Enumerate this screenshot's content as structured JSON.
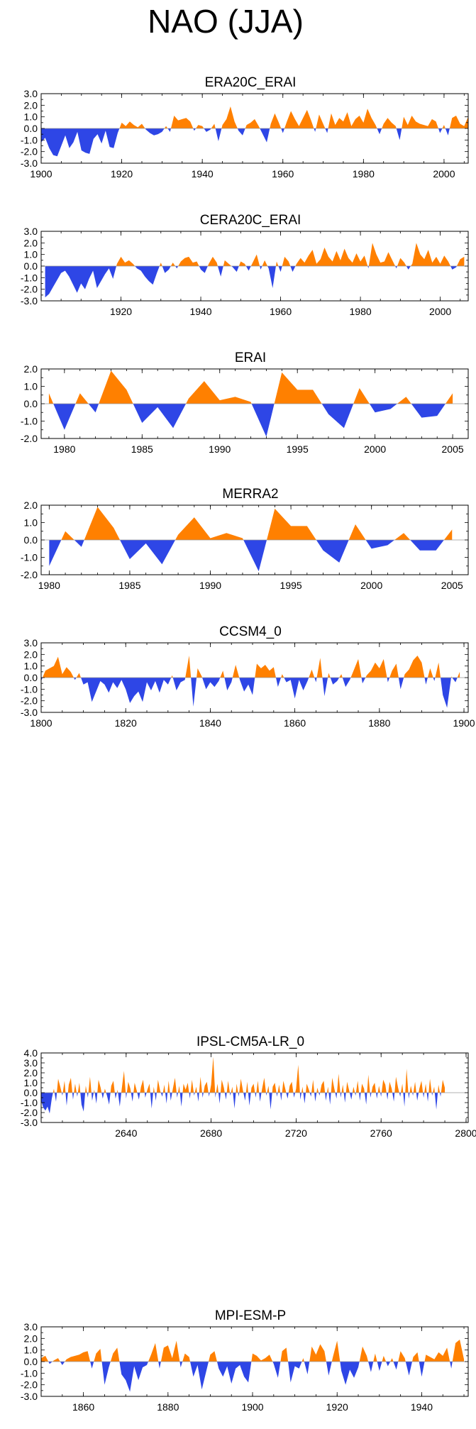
{
  "figure_title": "NAO (JJA)",
  "colors": {
    "positive": "#ff8000",
    "negative": "#2e46e6",
    "zero_line": "#999999"
  },
  "chart_data": [
    {
      "type": "area",
      "title": "ERA20C_ERAI",
      "xlim": [
        1900,
        2006
      ],
      "ylim": [
        -3,
        3
      ],
      "yticks": [
        3.0,
        2.0,
        1.0,
        0.0,
        -1.0,
        -2.0,
        -3.0
      ],
      "xticks": [
        1900,
        1920,
        1940,
        1960,
        1980,
        2000
      ],
      "x_start": 1900,
      "values": [
        -1.2,
        -0.8,
        -1.7,
        -2.3,
        -2.4,
        -1.5,
        -0.6,
        -1.7,
        -1.2,
        -0.3,
        -1.9,
        -2.1,
        -2.2,
        -0.9,
        -0.5,
        -1.3,
        -0.2,
        -1.6,
        -1.7,
        -0.4,
        0.5,
        0.2,
        0.6,
        0.3,
        0.1,
        0.4,
        -0.1,
        -0.4,
        -0.6,
        -0.5,
        -0.3,
        0.2,
        -0.3,
        1.1,
        0.7,
        0.8,
        0.9,
        0.6,
        -0.2,
        0.3,
        0.2,
        -0.3,
        -0.1,
        0.4,
        -1.1,
        0.3,
        0.8,
        1.9,
        0.6,
        -0.2,
        -0.6,
        0.3,
        0.5,
        0.8,
        0.2,
        -0.5,
        -1.2,
        0.4,
        1.3,
        0.5,
        -0.4,
        0.6,
        1.5,
        0.8,
        0.2,
        0.9,
        1.6,
        0.7,
        -0.3,
        1.2,
        0.4,
        -0.4,
        1.3,
        0.3,
        0.9,
        0.6,
        1.4,
        0.2,
        0.8,
        1.1,
        0.5,
        1.7,
        0.9,
        0.3,
        -0.5,
        0.4,
        0.9,
        0.5,
        0.2,
        -1.0,
        1.0,
        0.3,
        1.1,
        0.6,
        0.4,
        0.3,
        0.2,
        0.8,
        0.6,
        -0.4,
        0.3,
        -0.6,
        0.9,
        1.1,
        0.4,
        0.2,
        1.0
      ]
    },
    {
      "type": "area",
      "title": "CERA20C_ERAI",
      "xlim": [
        1900,
        2007
      ],
      "ylim": [
        -3,
        3
      ],
      "yticks": [
        3.0,
        2.0,
        1.0,
        0.0,
        -1.0,
        -2.0,
        -3.0
      ],
      "xticks": [
        1920,
        1940,
        1960,
        1980,
        2000
      ],
      "x_start": 1901,
      "values": [
        -2.7,
        -2.4,
        -1.8,
        -1.2,
        -0.6,
        -0.4,
        -0.9,
        -1.6,
        -2.3,
        -1.5,
        -2.0,
        -1.1,
        -0.4,
        -1.9,
        -1.3,
        -0.7,
        -0.2,
        -1.1,
        0.2,
        0.8,
        0.3,
        0.5,
        0.2,
        -0.2,
        -0.4,
        -0.9,
        -1.3,
        -1.6,
        -0.6,
        0.3,
        -0.6,
        -0.3,
        0.3,
        -0.2,
        0.4,
        0.7,
        0.8,
        0.3,
        0.4,
        -0.3,
        -0.6,
        0.2,
        0.8,
        0.3,
        -0.9,
        0.5,
        0.2,
        -0.1,
        -0.5,
        0.4,
        0.2,
        -0.4,
        0.3,
        1.0,
        -0.3,
        0.5,
        -0.2,
        -1.9,
        0.4,
        -0.5,
        0.8,
        0.4,
        -0.5,
        0.2,
        0.7,
        0.3,
        0.9,
        1.4,
        0.2,
        0.6,
        1.6,
        0.8,
        0.4,
        1.3,
        0.5,
        1.5,
        0.7,
        0.3,
        1.1,
        0.4,
        0.9,
        -0.2,
        2.0,
        1.0,
        0.3,
        0.4,
        1.2,
        0.5,
        -0.2,
        0.7,
        0.3,
        -0.3,
        0.2,
        2.0,
        1.0,
        0.6,
        1.4,
        0.3,
        0.8,
        0.2,
        0.9,
        0.4,
        -0.3,
        -0.1,
        0.6,
        0.8
      ]
    },
    {
      "type": "area",
      "title": "ERAI",
      "xlim": [
        1978.5,
        2006
      ],
      "ylim": [
        -2,
        2
      ],
      "yticks": [
        2.0,
        1.0,
        0.0,
        -1.0,
        -2.0
      ],
      "xticks": [
        1980,
        1985,
        1990,
        1995,
        2000,
        2005
      ],
      "x_start": 1979,
      "values": [
        0.6,
        -1.5,
        0.6,
        -0.5,
        1.9,
        0.8,
        -1.1,
        -0.2,
        -1.4,
        0.3,
        1.3,
        0.2,
        0.4,
        0.1,
        -1.9,
        1.8,
        0.8,
        0.8,
        -0.6,
        -1.4,
        0.9,
        -0.5,
        -0.3,
        0.4,
        -0.8,
        -0.7,
        0.6
      ]
    },
    {
      "type": "area",
      "title": "MERRA2",
      "xlim": [
        1979.5,
        2006
      ],
      "ylim": [
        -2,
        2
      ],
      "yticks": [
        2.0,
        1.0,
        0.0,
        -1.0,
        -2.0
      ],
      "xticks": [
        1980,
        1985,
        1990,
        1995,
        2000,
        2005
      ],
      "x_start": 1980,
      "values": [
        -1.5,
        0.5,
        -0.4,
        1.9,
        0.7,
        -1.1,
        -0.2,
        -1.4,
        0.3,
        1.3,
        0.1,
        0.4,
        0.1,
        -1.8,
        1.8,
        0.8,
        0.8,
        -0.6,
        -1.3,
        0.9,
        -0.5,
        -0.3,
        0.4,
        -0.6,
        -0.6,
        0.6
      ]
    },
    {
      "type": "area",
      "title": "CCSM4_0",
      "xlim": [
        1800,
        1901
      ],
      "ylim": [
        -3,
        3
      ],
      "yticks": [
        3.0,
        2.0,
        1.0,
        0.0,
        -1.0,
        -2.0,
        -3.0
      ],
      "xticks": [
        1800,
        1820,
        1840,
        1860,
        1880,
        1900
      ],
      "x_start": 1800,
      "values": [
        -0.3,
        0.6,
        0.8,
        1.0,
        1.8,
        0.3,
        0.9,
        0.5,
        -0.2,
        0.4,
        -0.6,
        -0.4,
        -2.1,
        -1.2,
        -0.3,
        -0.6,
        -1.3,
        -0.4,
        -0.9,
        -0.2,
        -1.0,
        -2.2,
        -1.6,
        -1.2,
        -2.1,
        -0.4,
        -1.1,
        -0.3,
        -1.3,
        -0.2,
        -0.6,
        0.2,
        -1.1,
        -0.4,
        -0.2,
        1.9,
        -2.5,
        0.8,
        0.1,
        -1.0,
        -0.4,
        -0.8,
        -0.3,
        0.6,
        -1.1,
        -0.4,
        1.1,
        -0.2,
        -1.2,
        -0.6,
        -1.5,
        1.2,
        0.8,
        1.1,
        0.6,
        0.9,
        -0.8,
        0.3,
        -0.4,
        -0.2,
        -1.8,
        -0.2,
        -1.1,
        -0.3,
        0.7,
        -0.4,
        1.7,
        -1.6,
        0.4,
        -0.6,
        -0.3,
        0.3,
        -0.8,
        -0.2,
        0.7,
        1.6,
        -0.5,
        0.2,
        0.6,
        1.3,
        0.8,
        1.6,
        -0.4,
        0.6,
        1.2,
        -1.0,
        0.3,
        0.7,
        1.5,
        1.9,
        1.3,
        -0.6,
        0.8,
        -0.3,
        1.3,
        -1.5,
        -2.6,
        0.1,
        -0.4,
        0.5
      ]
    },
    {
      "type": "area",
      "title": "IPSL-CM5A-LR_0",
      "xlim": [
        2600,
        2801
      ],
      "ylim": [
        -3,
        4
      ],
      "yticks": [
        4.0,
        3.0,
        2.0,
        1.0,
        0.0,
        -1.0,
        -2.0,
        -3.0
      ],
      "xticks": [
        2640,
        2680,
        2720,
        2760,
        2800
      ],
      "x_start": 2600,
      "values": [
        -0.8,
        -1.5,
        -1.8,
        -1.4,
        -2.1,
        -0.6,
        0.4,
        -0.9,
        1.4,
        0.6,
        -0.3,
        1.2,
        -1.3,
        0.8,
        1.5,
        -0.7,
        0.9,
        -0.4,
        1.0,
        -1.2,
        -1.9,
        0.7,
        -0.5,
        1.6,
        -0.8,
        0.3,
        -1.1,
        1.3,
        0.5,
        -0.6,
        0.4,
        -0.3,
        -1.2,
        0.7,
        1.2,
        -0.6,
        0.3,
        -1.4,
        0.5,
        2.2,
        -0.6,
        1.1,
        0.4,
        -0.9,
        1.0,
        0.2,
        -0.7,
        0.6,
        1.3,
        -0.5,
        0.3,
        0.9,
        -1.6,
        0.6,
        -0.8,
        1.3,
        0.2,
        -0.4,
        0.8,
        -1.1,
        1.2,
        -0.8,
        0.4,
        1.5,
        -0.5,
        0.7,
        -1.4,
        0.9,
        0.3,
        1.0,
        -0.6,
        1.3,
        -0.3,
        0.6,
        -0.9,
        1.6,
        -0.5,
        0.7,
        1.1,
        -0.4,
        0.8,
        3.6,
        -0.5,
        0.9,
        -1.1,
        1.3,
        0.5,
        -0.7,
        1.2,
        -0.3,
        0.6,
        -1.6,
        0.9,
        -0.4,
        1.4,
        0.2,
        -0.8,
        1.1,
        -1.3,
        0.5,
        0.9,
        -0.5,
        1.2,
        -0.9,
        0.4,
        1.5,
        -0.3,
        0.7,
        -1.7,
        0.6,
        1.0,
        -0.4,
        0.8,
        -0.8,
        1.2,
        0.3,
        -0.6,
        0.7,
        1.1,
        -0.5,
        0.4,
        2.8,
        -0.7,
        0.6,
        -1.1,
        0.9,
        0.3,
        -0.4,
        1.3,
        -0.9,
        0.5,
        -0.3,
        0.8,
        1.2,
        -0.8,
        0.6,
        -1.2,
        1.5,
        0.4,
        -0.6,
        1.9,
        -0.5,
        0.8,
        -1.0,
        1.1,
        0.2,
        -0.7,
        0.6,
        -0.3,
        1.2,
        -0.8,
        0.9,
        0.4,
        -1.2,
        1.8,
        -0.5,
        0.6,
        1.0,
        -0.6,
        0.7,
        -0.4,
        1.3,
        0.8,
        -0.7,
        1.1,
        0.4,
        -0.9,
        1.6,
        0.5,
        -0.4,
        0.9,
        -1.4,
        2.4,
        -0.6,
        0.7,
        -0.3,
        1.1,
        -0.8,
        0.4,
        1.2,
        -0.5,
        0.9,
        -0.9,
        1.4,
        -0.3,
        0.6,
        -1.7,
        0.8,
        -0.4,
        1.3,
        0.5
      ]
    },
    {
      "type": "area",
      "title": "MPI-ESM-P",
      "xlim": [
        1850,
        1951
      ],
      "ylim": [
        -3,
        3
      ],
      "yticks": [
        3.0,
        2.0,
        1.0,
        0.0,
        -1.0,
        -2.0,
        -3.0
      ],
      "xticks": [
        1860,
        1880,
        1900,
        1920,
        1940
      ],
      "x_start": 1850,
      "values": [
        0.3,
        0.5,
        -0.2,
        0.1,
        0.3,
        -0.3,
        0.2,
        0.4,
        0.5,
        0.6,
        0.8,
        0.9,
        -0.6,
        0.7,
        1.1,
        -2.0,
        -0.5,
        0.7,
        1.2,
        -1.1,
        -1.6,
        -2.6,
        -0.4,
        -1.6,
        -0.5,
        -0.3,
        0.6,
        1.6,
        -0.6,
        1.2,
        1.4,
        0.3,
        1.8,
        -0.5,
        0.7,
        0.4,
        -1.3,
        -0.3,
        -2.4,
        -0.9,
        0.6,
        0.9,
        -0.6,
        -1.3,
        -0.4,
        -1.9,
        -0.6,
        -0.3,
        -1.3,
        -1.8,
        0.7,
        0.5,
        0.1,
        0.3,
        0.6,
        -0.2,
        -1.4,
        0.9,
        1.2,
        -1.8,
        -0.4,
        -0.6,
        0.3,
        -1.1,
        1.3,
        0.6,
        1.5,
        0.9,
        -1.2,
        0.4,
        1.8,
        -0.8,
        -2.0,
        -0.7,
        -1.4,
        -0.5,
        1.3,
        0.5,
        -0.9,
        0.7,
        -0.8,
        0.5,
        -0.4,
        0.3,
        -0.7,
        0.9,
        0.3,
        -1.2,
        0.4,
        0.8,
        -1.3,
        0.6,
        0.4,
        0.2,
        0.8,
        0.5,
        1.2,
        -0.6,
        1.6,
        1.9,
        0.2
      ]
    }
  ]
}
